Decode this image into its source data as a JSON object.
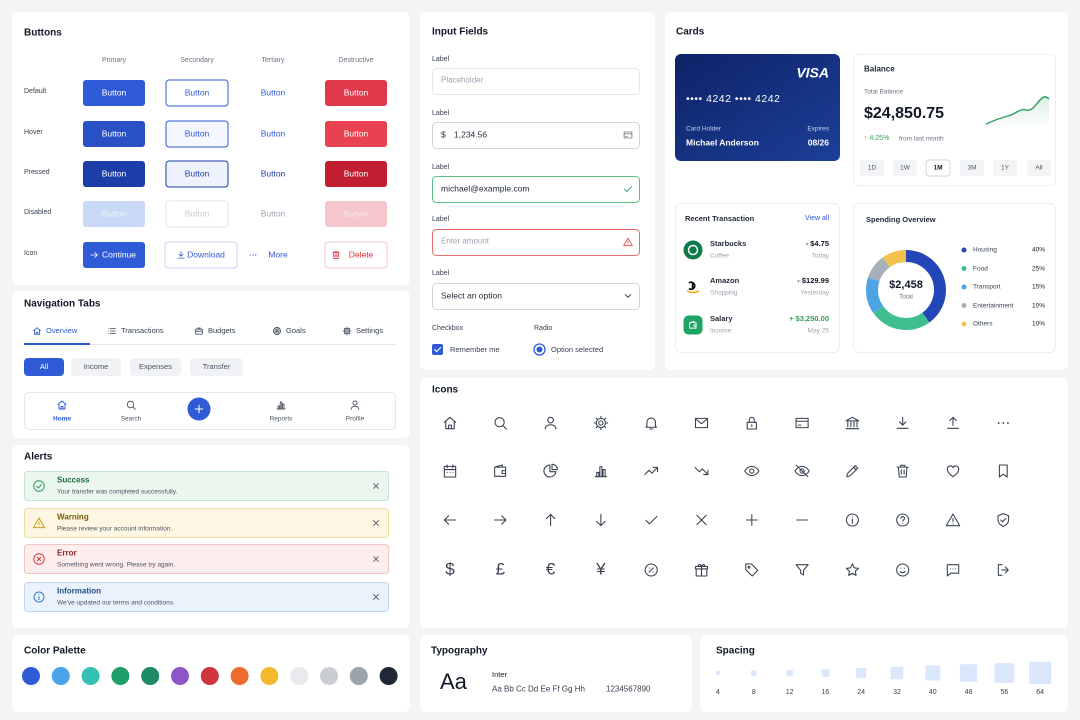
{
  "buttons": {
    "title": "Buttons",
    "columns": [
      "Primary",
      "Secondary",
      "Tertiary",
      "Destructive"
    ],
    "rows": [
      {
        "state": "Default",
        "labels": [
          "Button",
          "Button",
          "Button",
          "Button"
        ]
      },
      {
        "state": "Hover",
        "labels": [
          "Button",
          "Button",
          "Button",
          "Button"
        ]
      },
      {
        "state": "Pressed",
        "labels": [
          "Button",
          "Button",
          "Button",
          "Button"
        ]
      },
      {
        "state": "Disabled",
        "labels": [
          "Button",
          "Button",
          "Button",
          "Button"
        ]
      },
      {
        "state": "Icon",
        "labels": [
          "Continue",
          "Download",
          "More",
          "Delete"
        ]
      }
    ]
  },
  "navigation_tabs": {
    "title": "Navigation Tabs",
    "tabs": [
      "Overview",
      "Transactions",
      "Budgets",
      "Goals",
      "Settings"
    ],
    "filters": [
      "All",
      "Income",
      "Expenses",
      "Transfer"
    ],
    "bottom_nav": [
      "Home",
      "Search",
      "Reports",
      "Profile"
    ]
  },
  "alerts": {
    "title": "Alerts",
    "items": [
      {
        "title": "Success",
        "message": "Your transfer was completed successfully."
      },
      {
        "title": "Warning",
        "message": "Please review your account information."
      },
      {
        "title": "Error",
        "message": "Something went wrong. Please try again."
      },
      {
        "title": "Information",
        "message": "We've updated our terms and conditions."
      }
    ]
  },
  "color_palette": {
    "title": "Color Palette",
    "colors": [
      "#2f5bd6",
      "#4aa3e8",
      "#35c2b5",
      "#1f9d6b",
      "#1e8a66",
      "#8e55c6",
      "#d0343d",
      "#ee6a2e",
      "#f5b92f",
      "#e8eaed",
      "#c9ccd1",
      "#9ca3ad",
      "#1f2937"
    ]
  },
  "input_fields": {
    "title": "Input Fields",
    "fields": [
      {
        "label": "Label",
        "placeholder": "Placeholder"
      },
      {
        "label": "Label",
        "prefix": "$",
        "value": "1,234.56"
      },
      {
        "label": "Label",
        "value": "michael@example.com"
      },
      {
        "label": "Label",
        "placeholder": "Enter amount"
      },
      {
        "label": "Label",
        "value": "Select an option"
      }
    ],
    "checkbox": {
      "heading": "Checkbox",
      "label": "Remember me"
    },
    "radio": {
      "heading": "Radio",
      "label": "Option selected"
    }
  },
  "cards": {
    "title": "Cards",
    "credit_card": {
      "brand": "VISA",
      "number": "•••• 4242 •••• 4242",
      "holder_label": "Card Holder",
      "holder": "Michael Anderson",
      "expires_label": "Expires",
      "expires": "08/26"
    },
    "balance": {
      "title": "Balance",
      "label": "Total Balance",
      "amount": "$24,850.75",
      "change": "↑ 4.25%",
      "change_note": "from last month",
      "ranges": [
        "1D",
        "1W",
        "1M",
        "3M",
        "1Y",
        "All"
      ]
    },
    "recent_transactions": {
      "title": "Recent Transaction",
      "link": "View all",
      "items": [
        {
          "name": "Starbucks",
          "category": "Coffee",
          "amount": "- $4.75",
          "date": "Today"
        },
        {
          "name": "Amazon",
          "category": "Shopping",
          "amount": "- $129.99",
          "date": "Yesterday"
        },
        {
          "name": "Salary",
          "category": "Income",
          "amount": "+ $3,250.00",
          "date": "May 25"
        }
      ]
    },
    "spending_overview": {
      "title": "Spending Overview",
      "total": "$2,458",
      "total_label": "Total",
      "categories": [
        "Housing",
        "Food",
        "Transport",
        "Entertainment",
        "Others"
      ],
      "values": [
        40,
        25,
        15,
        10,
        10
      ],
      "value_labels": [
        "40%",
        "25%",
        "15%",
        "10%",
        "10%"
      ],
      "colors": [
        "#2346b8",
        "#3fbf8f",
        "#4ea3e4",
        "#a6b0ba",
        "#f2c14e"
      ]
    }
  },
  "icons": {
    "title": "Icons",
    "currency": [
      "$",
      "£",
      "€",
      "¥"
    ]
  },
  "typography": {
    "title": "Typography",
    "specimen": "Aa",
    "font_name": "Inter",
    "letters": "Aa Bb Cc Dd Ee Ff Gg Hh",
    "numerals": "1234567890"
  },
  "spacing": {
    "title": "Spacing",
    "values": [
      4,
      8,
      12,
      16,
      24,
      32,
      40,
      48,
      56,
      64
    ]
  }
}
